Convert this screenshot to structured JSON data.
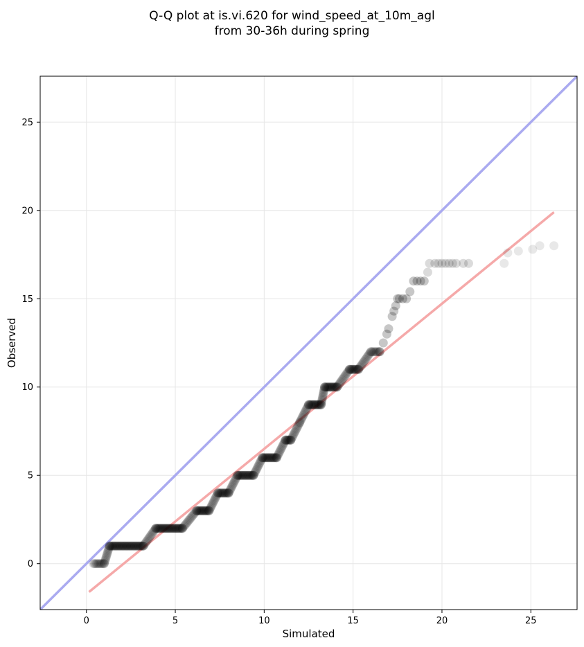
{
  "chart_data": {
    "type": "scatter",
    "title_lines": [
      "Q-Q plot at is.vi.620 for wind_speed_at_10m_agl",
      "from 30-36h during spring"
    ],
    "xlabel": "Simulated",
    "ylabel": "Observed",
    "xlim": [
      -2.6,
      27.6
    ],
    "ylim": [
      -2.6,
      27.6
    ],
    "xticks": [
      0,
      5,
      10,
      15,
      20,
      25
    ],
    "yticks": [
      0,
      5,
      10,
      15,
      20,
      25
    ],
    "grid": true,
    "colors": {
      "points": "#000000",
      "identity_line": "#aaaaf0",
      "fit_line": "#f5a9a9",
      "grid": "#e6e6e6"
    },
    "identity_line": {
      "x": [
        -2.6,
        27.6
      ],
      "y": [
        -2.6,
        27.6
      ]
    },
    "fit_line": {
      "x": [
        0.15,
        26.3
      ],
      "y": [
        -1.6,
        19.9
      ]
    },
    "series": [
      {
        "type": "step",
        "runs": [
          [
            0.4,
            1.0,
            0
          ],
          [
            1.3,
            3.2,
            1
          ],
          [
            3.9,
            5.4,
            2
          ],
          [
            6.2,
            6.9,
            3
          ],
          [
            7.4,
            8.0,
            4
          ],
          [
            8.5,
            9.4,
            5
          ],
          [
            9.9,
            10.7,
            6
          ],
          [
            11.2,
            11.5,
            7
          ],
          [
            12.5,
            13.2,
            9
          ],
          [
            13.4,
            14.1,
            10
          ],
          [
            14.8,
            15.3,
            11
          ],
          [
            16.0,
            16.5,
            12
          ]
        ],
        "transitions": [
          [
            1.0,
            0
          ],
          [
            1.3,
            1
          ],
          [
            3.2,
            1
          ],
          [
            3.9,
            2
          ],
          [
            5.4,
            2
          ],
          [
            6.2,
            3
          ],
          [
            6.9,
            3
          ],
          [
            7.4,
            4
          ],
          [
            8.0,
            4
          ],
          [
            8.5,
            5
          ],
          [
            9.4,
            5
          ],
          [
            9.9,
            6
          ],
          [
            10.7,
            6
          ],
          [
            11.2,
            7
          ],
          [
            11.5,
            7
          ],
          [
            12.0,
            8
          ],
          [
            12.5,
            9
          ],
          [
            13.2,
            9
          ],
          [
            13.4,
            10
          ],
          [
            14.1,
            10
          ],
          [
            14.8,
            11
          ],
          [
            15.3,
            11
          ],
          [
            16.0,
            12
          ]
        ],
        "points": [
          [
            16.5,
            12
          ],
          [
            16.7,
            12.5
          ],
          [
            16.9,
            13
          ],
          [
            17.0,
            13.3
          ],
          [
            17.2,
            14
          ],
          [
            17.3,
            14.3
          ],
          [
            17.4,
            14.6
          ],
          [
            17.5,
            15
          ],
          [
            17.6,
            15
          ],
          [
            17.8,
            15
          ],
          [
            18.0,
            15
          ],
          [
            18.2,
            15.4
          ],
          [
            18.4,
            16
          ],
          [
            18.6,
            16
          ],
          [
            18.8,
            16
          ],
          [
            19.0,
            16
          ],
          [
            19.2,
            16.5
          ],
          [
            19.3,
            17
          ],
          [
            19.6,
            17
          ],
          [
            19.8,
            17
          ],
          [
            20.0,
            17
          ],
          [
            20.2,
            17
          ],
          [
            20.4,
            17
          ],
          [
            20.6,
            17
          ],
          [
            20.8,
            17
          ],
          [
            21.2,
            17
          ],
          [
            21.5,
            17
          ],
          [
            23.5,
            17
          ],
          [
            23.7,
            17.6
          ],
          [
            24.3,
            17.7
          ],
          [
            25.1,
            17.8
          ],
          [
            25.5,
            18
          ],
          [
            26.3,
            18
          ]
        ]
      }
    ]
  }
}
